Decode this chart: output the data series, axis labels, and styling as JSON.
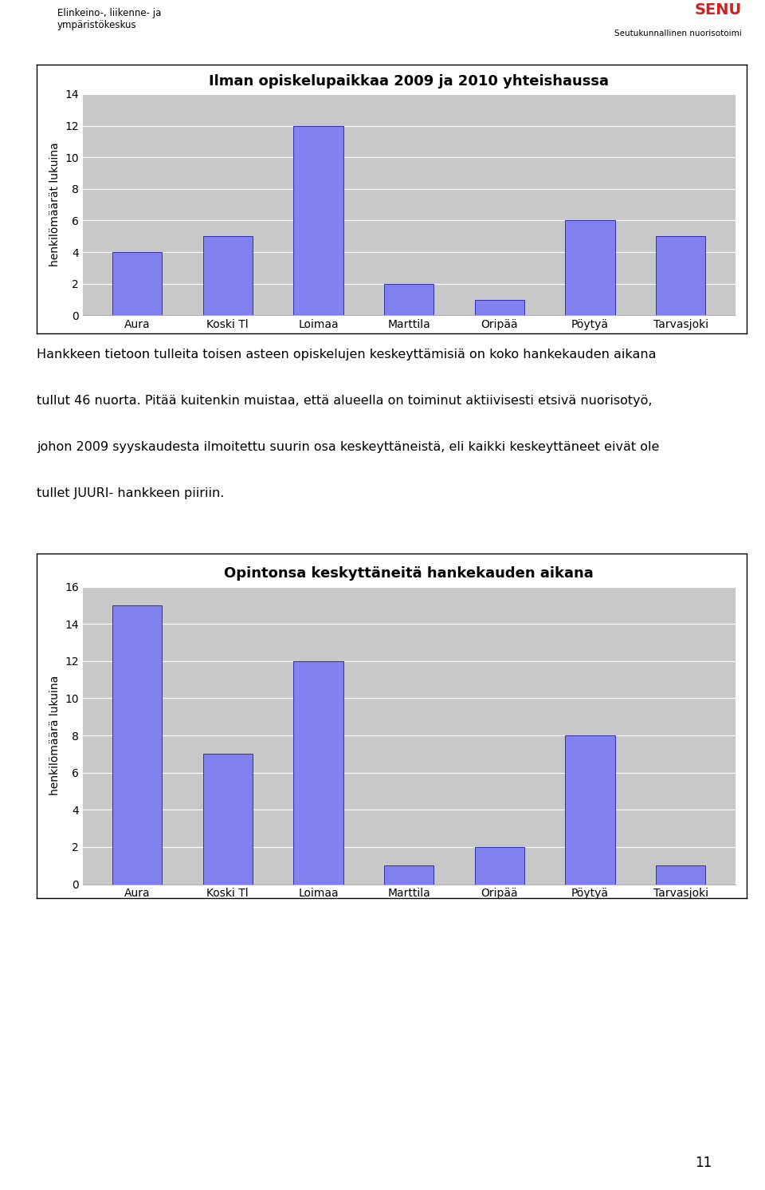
{
  "chart1_title": "Ilman opiskelupaikkaa 2009 ja 2010 yhteishaussa",
  "chart2_title": "Opintonsa keskyttäneitä hankekauden aikana",
  "categories": [
    "Aura",
    "Koski Tl",
    "Loimaa",
    "Marttila",
    "Oripää",
    "Pöytyä",
    "Tarvasjoki"
  ],
  "chart1_values": [
    4,
    5,
    12,
    2,
    1,
    6,
    5
  ],
  "chart2_values": [
    15,
    7,
    12,
    1,
    2,
    8,
    1
  ],
  "ylabel1": "henkilömäärät lukuina",
  "ylabel2": "henkilömäärä lukuina",
  "chart1_ylim": [
    0,
    14
  ],
  "chart1_yticks": [
    0,
    2,
    4,
    6,
    8,
    10,
    12,
    14
  ],
  "chart2_ylim": [
    0,
    16
  ],
  "chart2_yticks": [
    0,
    2,
    4,
    6,
    8,
    10,
    12,
    14,
    16
  ],
  "bar_color": "#8080ee",
  "bar_edgecolor": "#3030aa",
  "plot_bg_color": "#c8c8c8",
  "figure_bg_color": "#ffffff",
  "title_fontsize": 13,
  "axis_label_fontsize": 10,
  "tick_fontsize": 10,
  "paragraph_lines": [
    "Hankkeen tietoon tulleita toisen asteen opiskelujen keskeyttämisiä on koko hankekauden aikana",
    "tullut 46 nuorta. Pitää kuitenkin muistaa, että alueella on toiminut aktiivisesti etsivä nuorisotyö,",
    "johon 2009 syyskaudesta ilmoitettu suurin osa keskeyttäneistä, eli kaikki keskeyttäneet eivät ole",
    "tullet JUURI- hankkeen piiriin."
  ],
  "page_number": "11",
  "logo_left_line1": "Elinkeino-, liikenne- ja",
  "logo_left_line2": "ympäristökeskus",
  "logo_right_line1": "SENU",
  "logo_right_line2": "Seutukunnallinen nuorisotoimi"
}
